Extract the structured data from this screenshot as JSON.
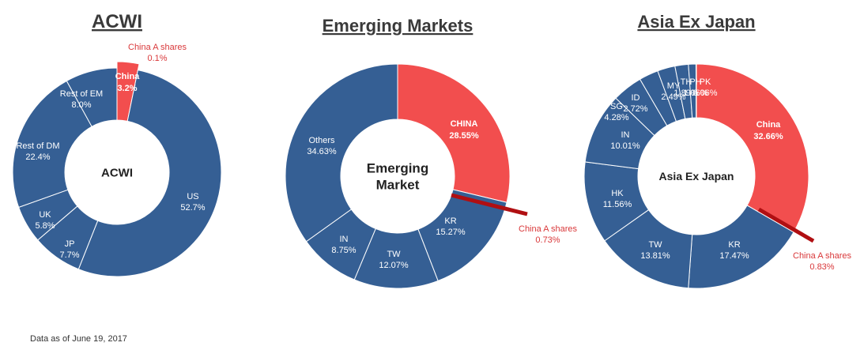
{
  "colors": {
    "blue": "#355f94",
    "red": "#f24e4e",
    "darkred": "#b00f12",
    "annot": "#d9383a"
  },
  "footnote": "Data as of June 19, 2017",
  "chart_data": [
    {
      "type": "pie",
      "title": "ACWI",
      "center_label": [
        "ACWI"
      ],
      "slices": [
        {
          "label": "China",
          "value": 3.2,
          "display": "3.2%",
          "color": "red",
          "bold": true
        },
        {
          "label": "US",
          "value": 52.7,
          "display": "52.7%",
          "color": "blue"
        },
        {
          "label": "JP",
          "value": 7.7,
          "display": "7.7%",
          "color": "blue"
        },
        {
          "label": "UK",
          "value": 5.8,
          "display": "5.8%",
          "color": "blue"
        },
        {
          "label": "Rest of DM",
          "value": 22.4,
          "display": "22.4%",
          "color": "blue"
        },
        {
          "label": "Rest of EM",
          "value": 8.0,
          "display": "8.0%",
          "color": "blue"
        }
      ],
      "china_a": {
        "label": "China A shares",
        "value": 0.1,
        "display": "0.1%"
      }
    },
    {
      "type": "pie",
      "title": "Emerging Markets",
      "center_label": [
        "Emerging",
        "Market"
      ],
      "slices": [
        {
          "label": "CHINA",
          "value": 28.55,
          "display": "28.55%",
          "color": "red",
          "bold": true
        },
        {
          "label": "KR",
          "value": 15.27,
          "display": "15.27%",
          "color": "blue"
        },
        {
          "label": "TW",
          "value": 12.07,
          "display": "12.07%",
          "color": "blue"
        },
        {
          "label": "IN",
          "value": 8.75,
          "display": "8.75%",
          "color": "blue"
        },
        {
          "label": "Others",
          "value": 34.63,
          "display": "34.63%",
          "color": "blue"
        }
      ],
      "china_a": {
        "label": "China A shares",
        "value": 0.73,
        "display": "0.73%"
      }
    },
    {
      "type": "pie",
      "title": "Asia Ex Japan",
      "center_label": [
        "Asia Ex Japan"
      ],
      "slices": [
        {
          "label": "China",
          "value": 32.66,
          "display": "32.66%",
          "color": "red",
          "bold": true
        },
        {
          "label": "KR",
          "value": 17.47,
          "display": "17.47%",
          "color": "blue"
        },
        {
          "label": "TW",
          "value": 13.81,
          "display": "13.81%",
          "color": "blue"
        },
        {
          "label": "HK",
          "value": 11.56,
          "display": "11.56%",
          "color": "blue"
        },
        {
          "label": "IN",
          "value": 10.01,
          "display": "10.01%",
          "color": "blue"
        },
        {
          "label": "SG",
          "value": 4.28,
          "display": "4.28%",
          "color": "blue"
        },
        {
          "label": "ID",
          "value": 2.72,
          "display": "2.72%",
          "color": "blue"
        },
        {
          "label": "MY",
          "value": 2.49,
          "display": "2.49%",
          "color": "blue"
        },
        {
          "label": "TH",
          "value": 1.89,
          "display": "1.89%",
          "color": "blue"
        },
        {
          "label": "PH",
          "value": 1.06,
          "display": "1.06%",
          "color": "blue"
        },
        {
          "label": "PK",
          "value": 0.06,
          "display": "0.06%",
          "color": "blue"
        }
      ],
      "china_a": {
        "label": "China A shares",
        "value": 0.83,
        "display": "0.83%"
      }
    }
  ]
}
